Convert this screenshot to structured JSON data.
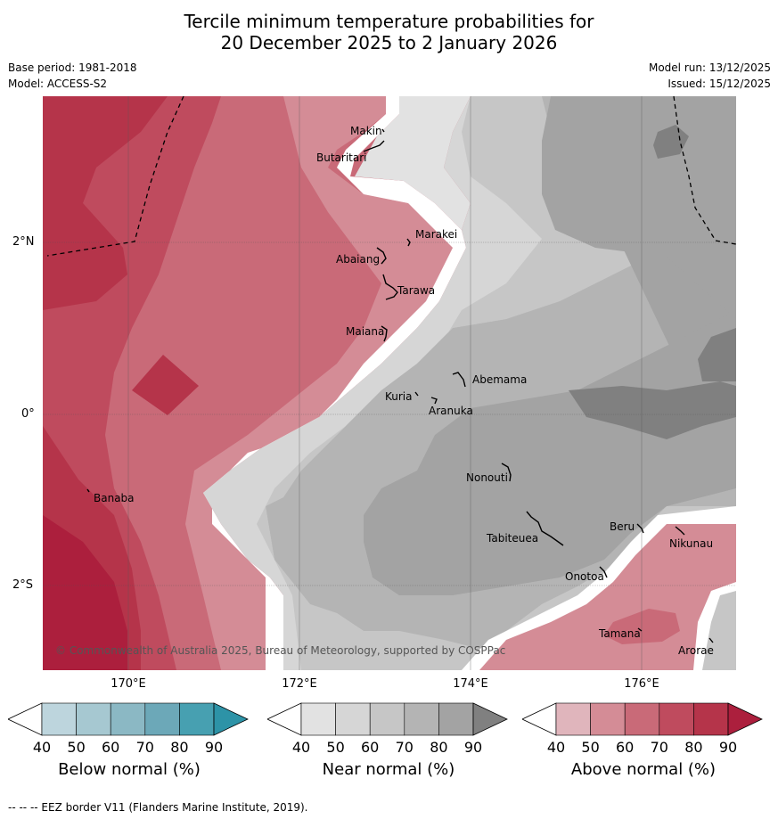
{
  "title": {
    "line1": "Tercile minimum temperature probabilities for",
    "line2": "20 December 2025 to 2 January 2026"
  },
  "meta": {
    "base_period": "Base period: 1981-2018",
    "model": "Model: ACCESS-S2",
    "model_run": "Model run: 13/12/2025",
    "issued": "Issued: 15/12/2025"
  },
  "map": {
    "latitude_labels": [
      "2°N",
      "0°",
      "2°S"
    ],
    "longitude_labels": [
      "170°E",
      "172°E",
      "174°E",
      "176°E"
    ],
    "places": [
      "Makin",
      "Butaritari",
      "Marakei",
      "Abaiang",
      "Tarawa",
      "Maiana",
      "Abemama",
      "Kuria",
      "Aranuka",
      "Banaba",
      "Nonouti",
      "Tabiteuea",
      "Beru",
      "Nikunau",
      "Onotoa",
      "Tamana",
      "Arorae"
    ],
    "copyright": "© Commonwealth of Australia 2025, Bureau of Meteorology, supported by COSPPac",
    "colors": {
      "above": [
        "#e0b5bc",
        "#d48c96",
        "#c96a78",
        "#bf4b5e",
        "#b5344a",
        "#ac1f3d"
      ],
      "near": [
        "#e2e2e2",
        "#d6d6d6",
        "#c6c6c6",
        "#b4b4b4",
        "#a3a3a3",
        "#808080"
      ],
      "below": [
        "#bdd5dd",
        "#a6c8d1",
        "#8bb8c4",
        "#6ca8b8",
        "#47a0b1",
        "#2d93a7"
      ]
    }
  },
  "colorbars": [
    {
      "name": "Below normal (%)",
      "ticks": [
        "40",
        "50",
        "60",
        "70",
        "80",
        "90"
      ],
      "colors": [
        "#bdd5dd",
        "#a6c8d1",
        "#8bb8c4",
        "#6ca8b8",
        "#47a0b1",
        "#2d93a7"
      ]
    },
    {
      "name": "Near normal (%)",
      "ticks": [
        "40",
        "50",
        "60",
        "70",
        "80",
        "90"
      ],
      "colors": [
        "#e2e2e2",
        "#d6d6d6",
        "#c6c6c6",
        "#b4b4b4",
        "#a3a3a3",
        "#808080"
      ]
    },
    {
      "name": "Above normal (%)",
      "ticks": [
        "40",
        "50",
        "60",
        "70",
        "80",
        "90"
      ],
      "colors": [
        "#e0b5bc",
        "#d48c96",
        "#c96a78",
        "#bf4b5e",
        "#b5344a",
        "#ac1f3d"
      ]
    }
  ],
  "footnote": "-- -- -- EEZ border V11 (Flanders Marine Institute, 2019)."
}
